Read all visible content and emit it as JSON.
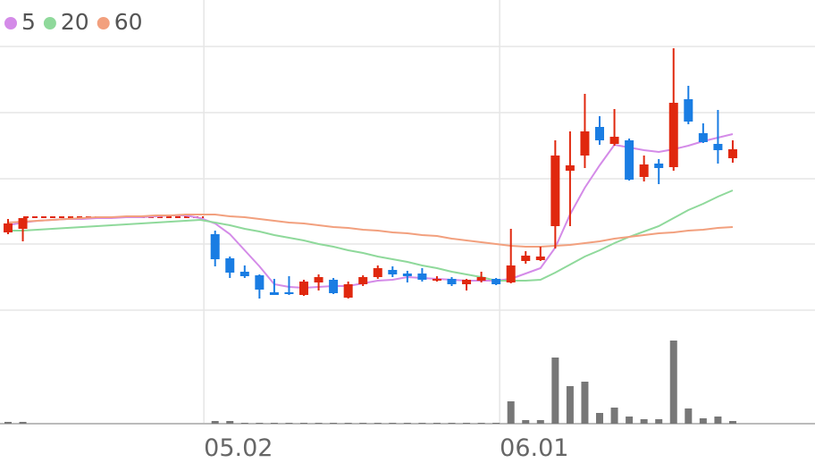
{
  "chart_data": {
    "type": "candlestick",
    "categories": [
      null,
      null,
      null,
      null,
      null,
      null,
      null,
      null,
      null,
      null,
      null,
      null,
      null,
      "05.02",
      null,
      null,
      null,
      null,
      null,
      null,
      null,
      null,
      null,
      null,
      null,
      null,
      null,
      null,
      null,
      null,
      null,
      null,
      null,
      "06.01",
      null,
      null,
      null,
      null,
      null,
      null,
      null,
      null,
      null,
      null,
      null,
      null,
      null,
      null,
      null,
      null
    ],
    "open": [
      87,
      91,
      null,
      null,
      null,
      null,
      null,
      null,
      null,
      null,
      null,
      null,
      null,
      null,
      85,
      58,
      43,
      39,
      20,
      20,
      17,
      31,
      34,
      14,
      29,
      37,
      45,
      41,
      41,
      34,
      35,
      29,
      33,
      35,
      31,
      55,
      56,
      94,
      156,
      173,
      205,
      186,
      190,
      149,
      164,
      160,
      236,
      198,
      186,
      170
    ],
    "high": [
      102,
      103,
      null,
      null,
      null,
      null,
      null,
      null,
      null,
      null,
      null,
      null,
      null,
      null,
      89,
      60,
      50,
      40,
      35,
      38,
      34,
      40,
      36,
      32,
      39,
      50,
      49,
      44,
      47,
      38,
      37,
      35,
      43,
      36,
      91,
      66,
      71,
      190,
      200,
      242,
      217,
      225,
      192,
      173,
      169,
      293,
      251,
      209,
      224,
      190
    ],
    "low": [
      85,
      77,
      null,
      null,
      null,
      null,
      null,
      null,
      null,
      null,
      null,
      null,
      null,
      null,
      49,
      36,
      36,
      13,
      17,
      17,
      16,
      22,
      18,
      13,
      27,
      35,
      37,
      31,
      32,
      32,
      27,
      22,
      31,
      28,
      30,
      52,
      55,
      69,
      94,
      159,
      185,
      184,
      145,
      144,
      141,
      156,
      208,
      187,
      164,
      165
    ],
    "close": [
      97,
      103,
      null,
      null,
      null,
      null,
      null,
      null,
      null,
      null,
      null,
      null,
      null,
      null,
      57,
      42,
      38,
      23,
      17,
      18,
      32,
      37,
      19,
      29,
      37,
      47,
      40,
      38,
      34,
      35,
      29,
      34,
      37,
      29,
      50,
      61,
      60,
      173,
      162,
      200,
      190,
      194,
      146,
      163,
      159,
      232,
      211,
      188,
      179,
      180
    ],
    "up_color": "#e0280e",
    "down_color": "#1a7de3",
    "series": [
      {
        "name": "5",
        "color": "#d48be8",
        "values": [
          95,
          98,
          100,
          101,
          102,
          102,
          103,
          103,
          104,
          104,
          105,
          106,
          106,
          103,
          97,
          85,
          67,
          49,
          29,
          26,
          25,
          26,
          27,
          27,
          30,
          33,
          34,
          37,
          36,
          35,
          34,
          33,
          33,
          33,
          35,
          41,
          47,
          70,
          107,
          137,
          162,
          185,
          182,
          179,
          177,
          180,
          184,
          189,
          193,
          197
        ]
      },
      {
        "name": "20",
        "color": "#8fd99b",
        "values": [
          89,
          89,
          90,
          91,
          92,
          93,
          94,
          95,
          96,
          97,
          98,
          99,
          100,
          101,
          98,
          95,
          91,
          88,
          84,
          81,
          78,
          74,
          71,
          67,
          64,
          60,
          57,
          54,
          50,
          47,
          43,
          40,
          37,
          33,
          33,
          33,
          34,
          42,
          51,
          60,
          67,
          75,
          82,
          88,
          94,
          103,
          112,
          119,
          127,
          134
        ]
      },
      {
        "name": "60",
        "color": "#f2a07e",
        "values": [
          98,
          99,
          100,
          101,
          102,
          103,
          104,
          104,
          105,
          105,
          106,
          106,
          107,
          107,
          107,
          105,
          104,
          102,
          100,
          98,
          97,
          95,
          93,
          92,
          90,
          89,
          87,
          86,
          84,
          83,
          80,
          78,
          76,
          74,
          72,
          71,
          71,
          72,
          73,
          75,
          77,
          80,
          82,
          84,
          86,
          87,
          89,
          90,
          92,
          93
        ]
      }
    ],
    "ylim": [
      0,
      347
    ],
    "yticks": [
      0,
      74,
      147,
      221,
      295
    ],
    "grid": true,
    "volume": {
      "color": "#777777",
      "values": [
        2,
        2,
        null,
        null,
        null,
        null,
        null,
        null,
        null,
        null,
        null,
        null,
        null,
        null,
        3,
        3,
        1,
        1,
        1,
        1,
        1,
        1,
        1,
        1,
        1,
        1,
        1,
        1,
        1,
        1,
        1,
        1,
        1,
        1,
        25,
        4,
        4,
        74,
        42,
        47,
        12,
        18,
        8,
        5,
        5,
        93,
        17,
        6,
        8,
        3
      ]
    },
    "volume_lim": [
      0,
      127
    ]
  }
}
